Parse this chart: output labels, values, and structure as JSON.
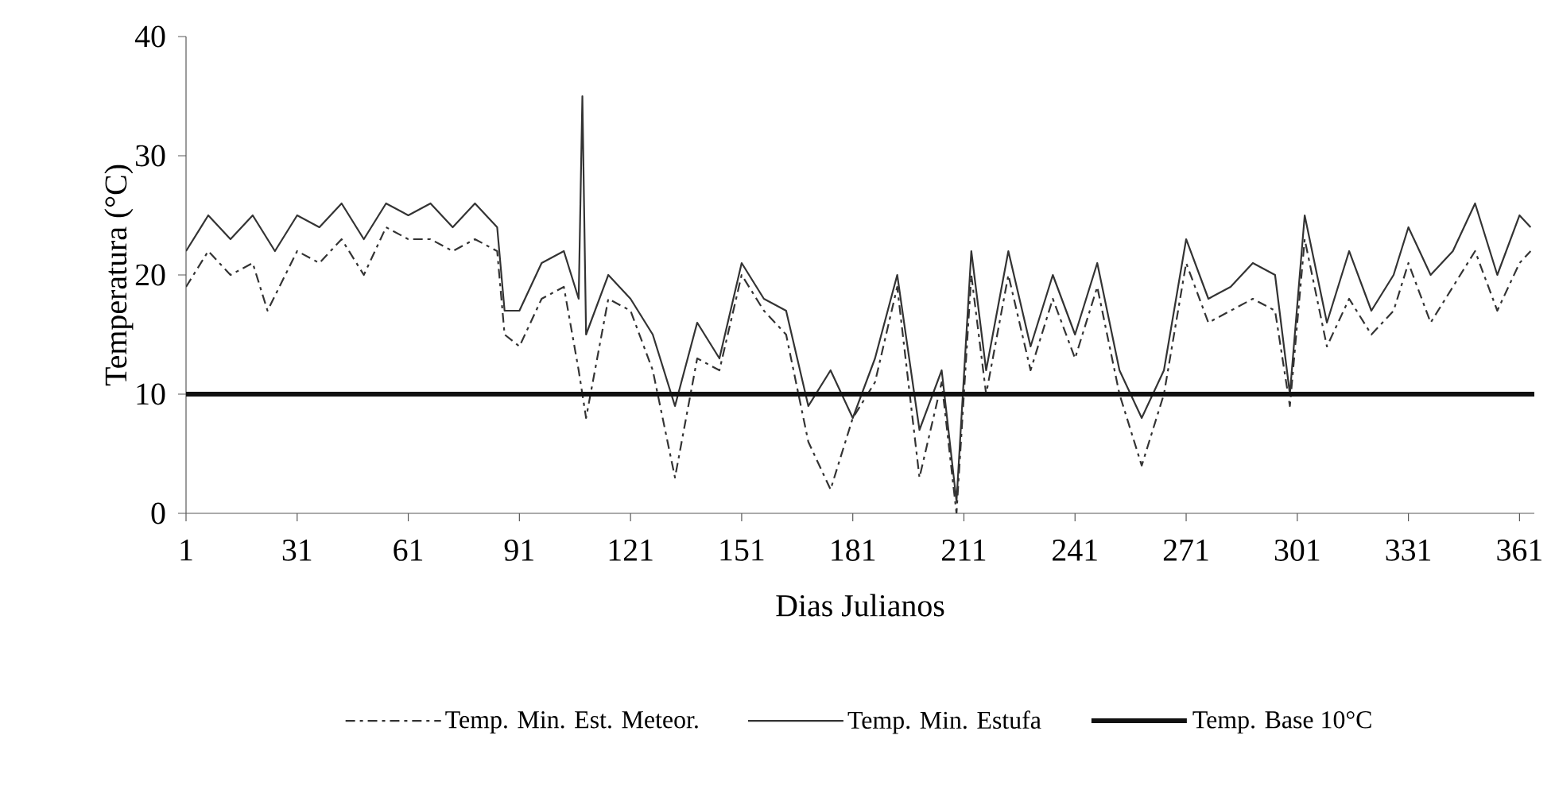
{
  "chart_data": {
    "type": "line",
    "xlabel": "Dias Julianos",
    "ylabel": "Temperatura (°C)",
    "xlim": [
      1,
      365
    ],
    "ylim": [
      0,
      40
    ],
    "xticks": [
      1,
      31,
      61,
      91,
      121,
      151,
      181,
      211,
      241,
      271,
      301,
      331,
      361
    ],
    "yticks": [
      0,
      10,
      20,
      30,
      40
    ],
    "grid": false,
    "legend": "bottom",
    "marker": "none",
    "series": [
      {
        "name": "Temp. Min. Est. Meteor.",
        "color": "#333333",
        "line_style": "dashed",
        "x": [
          1,
          7,
          13,
          19,
          23,
          31,
          37,
          43,
          49,
          55,
          61,
          67,
          73,
          79,
          85,
          87,
          91,
          97,
          103,
          107,
          109,
          115,
          121,
          127,
          133,
          139,
          145,
          151,
          157,
          163,
          169,
          175,
          181,
          187,
          193,
          199,
          205,
          209,
          213,
          217,
          223,
          229,
          235,
          241,
          247,
          253,
          259,
          265,
          271,
          277,
          283,
          289,
          295,
          299,
          303,
          309,
          315,
          321,
          327,
          331,
          337,
          343,
          349,
          355,
          361,
          364
        ],
        "values": [
          19,
          22,
          20,
          21,
          17,
          22,
          21,
          23,
          20,
          24,
          23,
          23,
          22,
          23,
          22,
          15,
          14,
          18,
          19,
          12,
          8,
          18,
          17,
          12,
          3,
          13,
          12,
          20,
          17,
          15,
          6,
          2,
          8,
          11,
          19,
          3,
          11,
          0,
          20,
          10,
          20,
          12,
          18,
          13,
          19,
          10,
          4,
          10,
          21,
          16,
          17,
          18,
          17,
          9,
          23,
          14,
          18,
          15,
          17,
          21,
          16,
          19,
          22,
          17,
          21,
          22
        ]
      },
      {
        "name": "Temp. Min. Estufa",
        "color": "#333333",
        "line_style": "solid",
        "x": [
          1,
          7,
          13,
          19,
          25,
          31,
          37,
          43,
          49,
          55,
          61,
          67,
          73,
          79,
          85,
          87,
          91,
          97,
          103,
          107,
          108,
          109,
          115,
          121,
          127,
          133,
          139,
          145,
          151,
          157,
          163,
          169,
          175,
          181,
          187,
          193,
          199,
          205,
          209,
          213,
          217,
          223,
          229,
          235,
          241,
          247,
          253,
          259,
          265,
          271,
          277,
          283,
          289,
          295,
          299,
          303,
          309,
          315,
          321,
          327,
          331,
          337,
          343,
          349,
          355,
          361,
          364
        ],
        "values": [
          22,
          25,
          23,
          25,
          22,
          25,
          24,
          26,
          23,
          26,
          25,
          26,
          24,
          26,
          24,
          17,
          17,
          21,
          22,
          18,
          35,
          15,
          20,
          18,
          15,
          9,
          16,
          13,
          21,
          18,
          17,
          9,
          12,
          8,
          13,
          20,
          7,
          12,
          1,
          22,
          12,
          22,
          14,
          20,
          15,
          21,
          12,
          8,
          12,
          23,
          18,
          19,
          21,
          20,
          10,
          25,
          16,
          22,
          17,
          20,
          24,
          20,
          22,
          26,
          20,
          25,
          24
        ]
      }
    ],
    "ref_lines": [
      {
        "axis": "y",
        "value": 10,
        "label": "Temp. Base 10°C",
        "color": "#111111"
      }
    ]
  }
}
